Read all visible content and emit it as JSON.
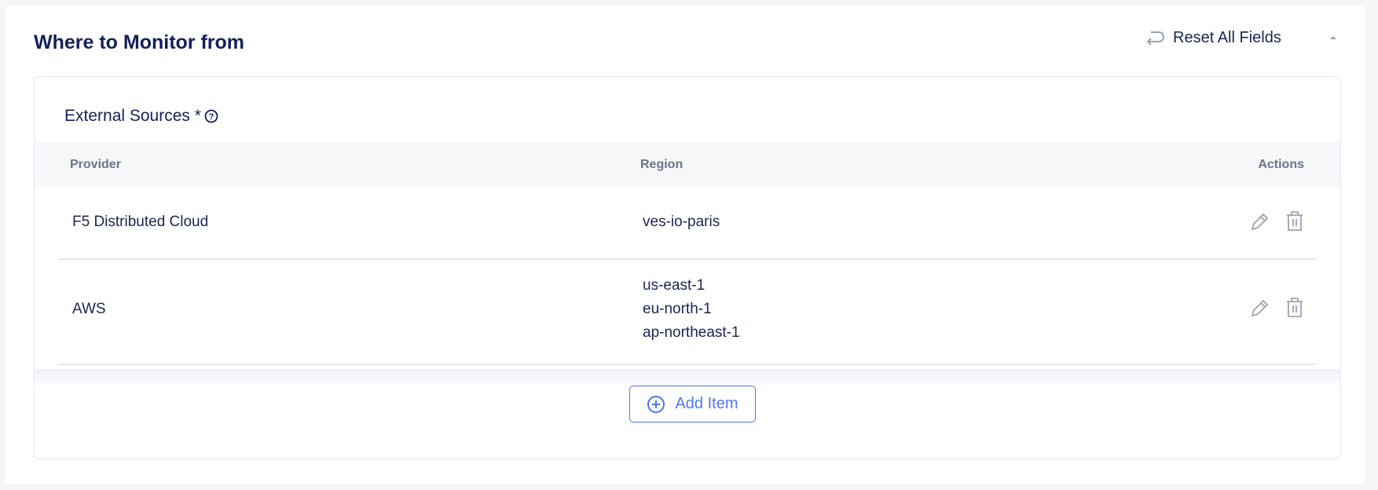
{
  "section": {
    "title": "Where to Monitor from",
    "reset_label": "Reset All Fields"
  },
  "external_sources": {
    "label": "External Sources *",
    "columns": [
      "Provider",
      "Region",
      "Actions"
    ],
    "rows": [
      {
        "provider": "F5 Distributed Cloud",
        "regions": [
          "ves-io-paris"
        ]
      },
      {
        "provider": "AWS",
        "regions": [
          "us-east-1",
          "eu-north-1",
          "ap-northeast-1"
        ]
      }
    ],
    "add_label": "Add Item"
  },
  "colors": {
    "accent": "#4f74f5",
    "text": "#14205a",
    "icon": "#9aa3b5"
  }
}
